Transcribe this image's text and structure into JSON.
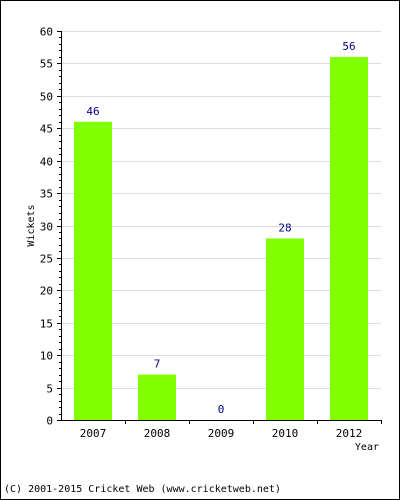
{
  "chart_data": {
    "type": "bar",
    "categories": [
      "2007",
      "2008",
      "2009",
      "2010",
      "2012"
    ],
    "values": [
      46,
      7,
      0,
      28,
      56
    ],
    "data_labels": [
      "46",
      "7",
      "0",
      "28",
      "56"
    ],
    "xlabel": "Year",
    "ylabel": "Wickets",
    "ylim": [
      0,
      60
    ],
    "yticks": [
      0,
      5,
      10,
      15,
      20,
      25,
      30,
      35,
      40,
      45,
      50,
      55,
      60
    ],
    "grid": true,
    "legend": "none",
    "bar_color": "#80ff00",
    "label_color": "#000080"
  },
  "footer": {
    "copyright": "(C) 2001-2015 Cricket Web (www.cricketweb.net)"
  }
}
